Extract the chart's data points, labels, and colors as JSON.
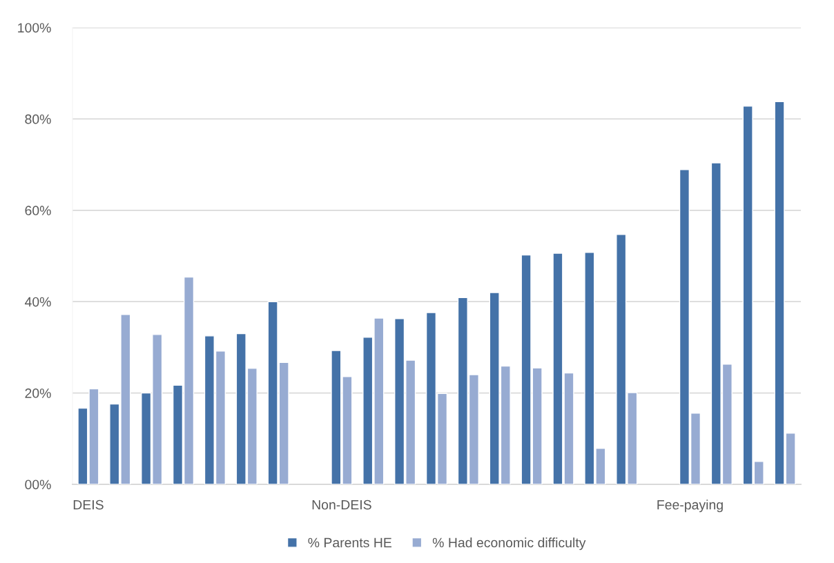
{
  "chart_data": {
    "type": "bar",
    "categories": [
      "DEIS",
      null,
      null,
      null,
      null,
      null,
      null,
      null,
      "Non-DEIS",
      null,
      null,
      null,
      null,
      null,
      null,
      null,
      null,
      null,
      null,
      "Fee-paying",
      null,
      null,
      null
    ],
    "series": [
      {
        "name": "% Parents HE",
        "color": "#4472a8",
        "values": [
          16.7,
          17.6,
          20.0,
          21.7,
          32.5,
          33.0,
          40.0,
          null,
          29.3,
          32.2,
          36.3,
          37.6,
          40.9,
          42.0,
          50.2,
          50.6,
          50.8,
          54.7,
          null,
          68.9,
          70.4,
          82.8,
          83.8
        ]
      },
      {
        "name": "% Had economic difficulty",
        "color": "#97abd2",
        "values": [
          20.9,
          37.2,
          32.8,
          45.4,
          29.2,
          25.4,
          26.7,
          null,
          23.6,
          36.4,
          27.2,
          19.9,
          24.0,
          25.9,
          25.5,
          24.4,
          7.9,
          20.1,
          null,
          15.6,
          26.3,
          5.0,
          11.2
        ]
      }
    ],
    "ylim": [
      0,
      100
    ],
    "yticks": [
      {
        "value": 0,
        "label": "00%"
      },
      {
        "value": 20,
        "label": "20%"
      },
      {
        "value": 40,
        "label": "40%"
      },
      {
        "value": 60,
        "label": "60%"
      },
      {
        "value": 80,
        "label": "80%"
      },
      {
        "value": 100,
        "label": "100%"
      }
    ],
    "grid": "y",
    "legend": "bottom"
  }
}
